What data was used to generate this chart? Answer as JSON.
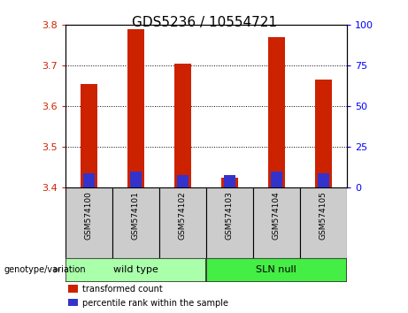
{
  "title": "GDS5236 / 10554721",
  "samples": [
    "GSM574100",
    "GSM574101",
    "GSM574102",
    "GSM574103",
    "GSM574104",
    "GSM574105"
  ],
  "transformed_count": [
    3.655,
    3.79,
    3.705,
    3.425,
    3.77,
    3.665
  ],
  "percentile_rank_top": [
    3.435,
    3.44,
    3.432,
    3.432,
    3.44,
    3.435
  ],
  "bar_base": 3.4,
  "red_color": "#cc2200",
  "blue_color": "#3333cc",
  "ylim_left": [
    3.4,
    3.8
  ],
  "ylim_right": [
    0,
    100
  ],
  "yticks_left": [
    3.4,
    3.5,
    3.6,
    3.7,
    3.8
  ],
  "yticks_right": [
    0,
    25,
    50,
    75,
    100
  ],
  "groups": [
    {
      "label": "wild type",
      "start": 0,
      "end": 3,
      "color": "#aaffaa"
    },
    {
      "label": "SLN null",
      "start": 3,
      "end": 6,
      "color": "#44ee44"
    }
  ],
  "group_label": "genotype/variation",
  "legend_items": [
    {
      "label": "transformed count",
      "color": "#cc2200"
    },
    {
      "label": "percentile rank within the sample",
      "color": "#3333cc"
    }
  ],
  "sample_bg_color": "#cccccc",
  "plot_bg": "#ffffff",
  "fig_bg": "#ffffff",
  "title_fontsize": 11,
  "tick_fontsize": 8,
  "bar_width": 0.35
}
